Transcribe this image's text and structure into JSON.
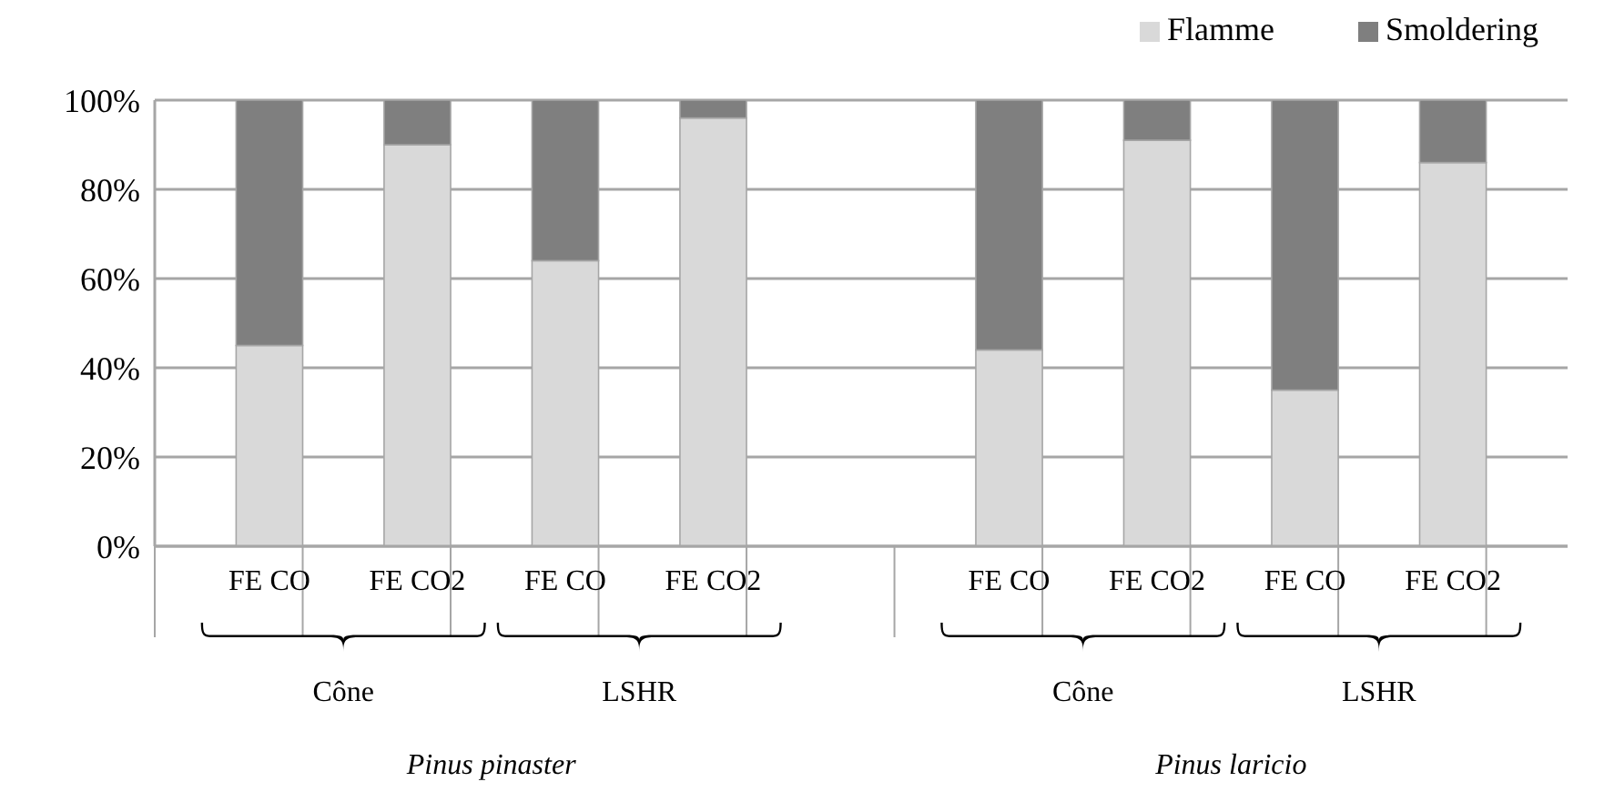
{
  "chart_data": {
    "type": "bar",
    "stacked": true,
    "categories": [
      "FE CO",
      "FE CO2",
      "FE CO",
      "FE CO2",
      null,
      "FE CO",
      "FE CO2",
      "FE CO",
      "FE CO2"
    ],
    "series": [
      {
        "name": "Flamme",
        "color": "#d9d9d9",
        "values": [
          45,
          90,
          64,
          96,
          null,
          44,
          91,
          35,
          86
        ]
      },
      {
        "name": "Smoldering",
        "color": "#7f7f7f",
        "values": [
          55,
          10,
          36,
          4,
          null,
          56,
          9,
          65,
          14
        ]
      }
    ],
    "ylim": [
      0,
      100
    ],
    "yticks": [
      {
        "value": 0,
        "label": "0%"
      },
      {
        "value": 20,
        "label": "20%"
      },
      {
        "value": 40,
        "label": "40%"
      },
      {
        "value": 60,
        "label": "60%"
      },
      {
        "value": 80,
        "label": "80%"
      },
      {
        "value": 100,
        "label": "100%"
      }
    ],
    "grid": "y",
    "legend": "top right",
    "annotations": [
      "Cône",
      "LSHR",
      "Cône",
      "LSHR",
      "Pinus pinaster",
      "Pinus laricio"
    ]
  }
}
